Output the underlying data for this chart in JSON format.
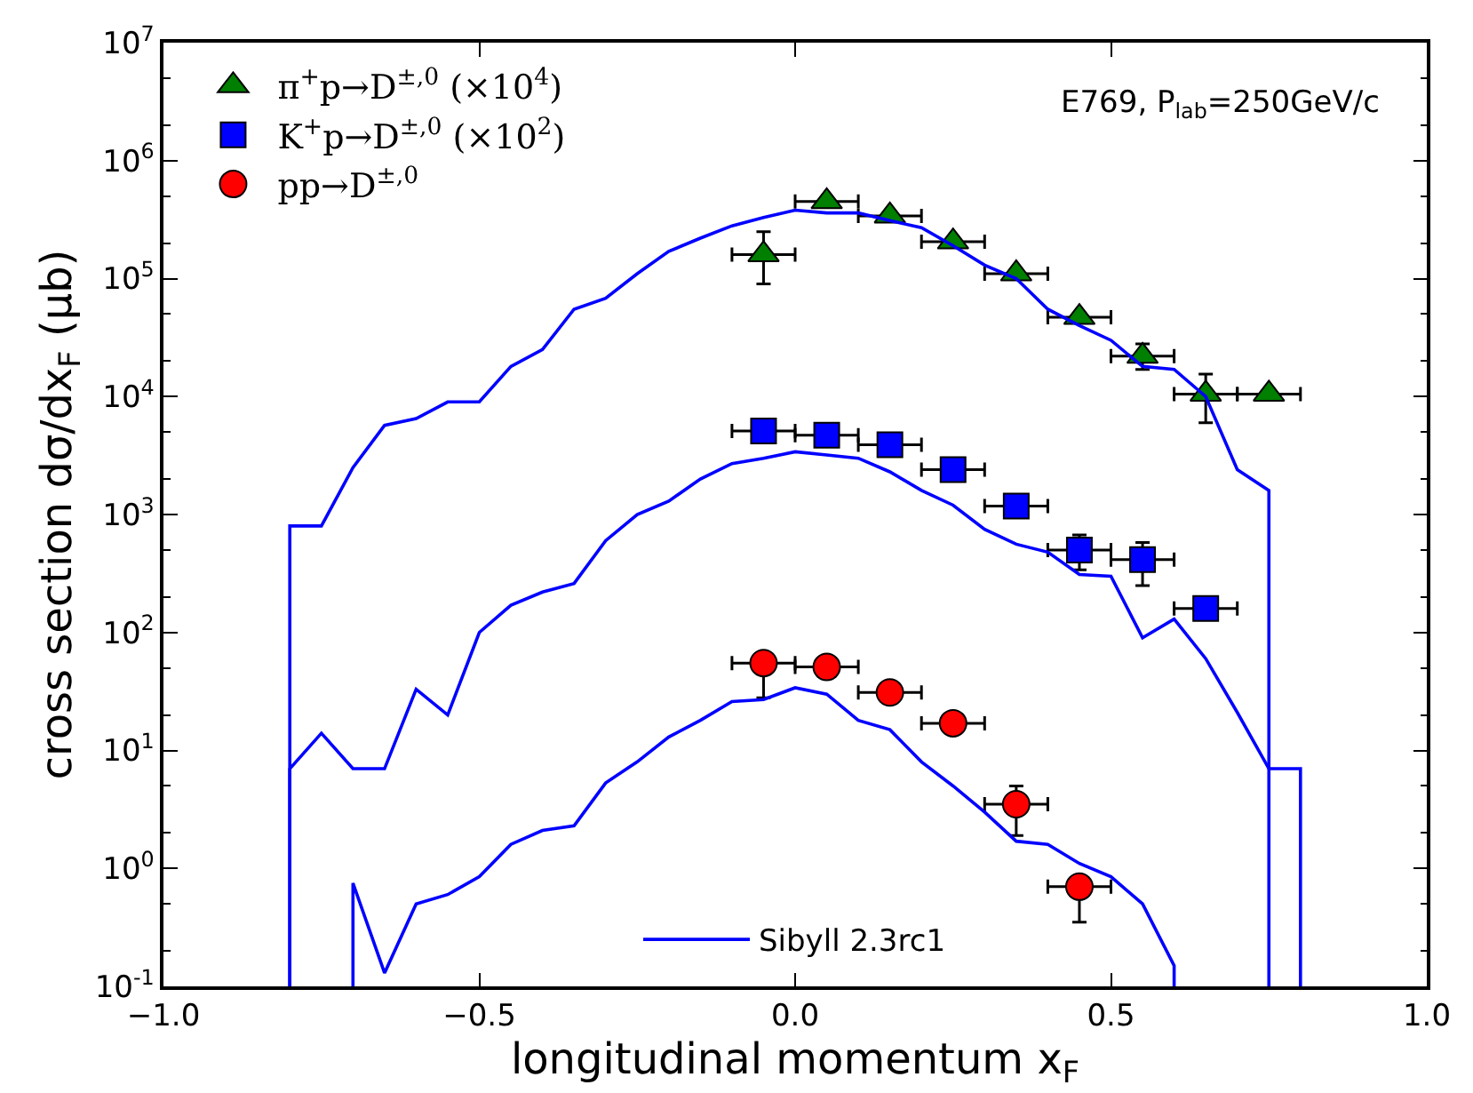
{
  "chart_data": {
    "type": "scatter",
    "xlabel": "longitudinal momentum x$_{F}$",
    "ylabel": "cross section dσ/dx$_{F}$ (μb)",
    "annotations": [
      "E769, P$_{lab}$=250GeV/c"
    ],
    "xlim": [
      -1.0,
      1.0
    ],
    "xticks": [
      {
        "value": -1.0,
        "label": "−1.0"
      },
      {
        "value": -0.5,
        "label": "−0.5"
      },
      {
        "value": 0.0,
        "label": "0.0"
      },
      {
        "value": 0.5,
        "label": "0.5"
      },
      {
        "value": 1.0,
        "label": "1.0"
      }
    ],
    "ylim": [
      0.1,
      10000000
    ],
    "yticks": [
      {
        "value": 0.1,
        "label": "10$^{-1}$"
      },
      {
        "value": 1,
        "label": "10$^{0}$"
      },
      {
        "value": 10,
        "label": "10$^{1}$"
      },
      {
        "value": 100,
        "label": "10$^{2}$"
      },
      {
        "value": 1000,
        "label": "10$^{3}$"
      },
      {
        "value": 10000,
        "label": "10$^{4}$"
      },
      {
        "value": 100000,
        "label": "10$^{5}$"
      },
      {
        "value": 1000000,
        "label": "10$^{6}$"
      },
      {
        "value": 10000000,
        "label": "10$^{7}$"
      }
    ],
    "log": "y",
    "legend": "top left",
    "series": [
      {
        "name": "π$^{+}$p→D$^{±,0}$ (×10$^{4}$)",
        "color": "#007f00",
        "marker": "triangle",
        "x": [
          -0.05,
          0.05,
          0.15,
          0.25,
          0.35,
          0.45,
          0.55,
          0.65,
          0.75
        ],
        "values": [
          160000,
          450000,
          340000,
          205000,
          110000,
          47000,
          22000,
          10500,
          10500
        ],
        "errors": [
          [
            90000,
            250000
          ],
          null,
          null,
          null,
          null,
          null,
          [
            17000,
            28000
          ],
          [
            6000,
            15500
          ],
          null
        ],
        "xerrors": [
          0.05,
          0.05,
          0.05,
          0.05,
          0.05,
          0.05,
          0.05,
          0.05,
          0.05
        ]
      },
      {
        "name": "K$^{+}$p→D$^{±,0}$ (×10$^{2}$)",
        "color": "#0000ff",
        "marker": "square",
        "x": [
          -0.05,
          0.05,
          0.15,
          0.25,
          0.35,
          0.45,
          0.55,
          0.65
        ],
        "values": [
          5100,
          4700,
          3900,
          2400,
          1180,
          500,
          415,
          160
        ],
        "errors": [
          null,
          null,
          null,
          null,
          null,
          [
            340,
            670
          ],
          [
            250,
            580
          ],
          null
        ],
        "xerrors": [
          0.05,
          0.05,
          0.05,
          0.05,
          0.05,
          0.05,
          0.05,
          0.05
        ]
      },
      {
        "name": "pp→D$^{±,0}$",
        "color": "#ff0000",
        "marker": "circle",
        "x": [
          -0.05,
          0.05,
          0.15,
          0.25,
          0.35,
          0.45
        ],
        "values": [
          55,
          51,
          31,
          17,
          3.5,
          0.7
        ],
        "errors": [
          [
            28,
            55
          ],
          null,
          null,
          null,
          [
            1.9,
            5
          ],
          [
            0.35,
            0.7
          ]
        ],
        "xerrors": [
          0.05,
          0.05,
          0.05,
          0.05,
          0.05,
          0.05
        ]
      },
      {
        "name": "Sibyll 2.3rc1",
        "type": "line",
        "color": "#0000ff",
        "marker": "none",
        "x": [
          -0.8,
          -0.8,
          -0.75,
          -0.7,
          -0.65,
          -0.6,
          -0.55,
          -0.5,
          -0.45,
          -0.4,
          -0.35,
          -0.3,
          -0.25,
          -0.2,
          -0.15,
          -0.1,
          -0.05,
          0.0,
          0.05,
          0.1,
          0.15,
          0.2,
          0.25,
          0.3,
          0.35,
          0.4,
          0.45,
          0.5,
          0.55,
          0.6,
          0.65,
          0.7,
          0.75,
          0.75
        ],
        "values": [
          0.1,
          800,
          800,
          2500,
          5700,
          6500,
          9000,
          9000,
          18000,
          25000,
          55000,
          68000,
          110000,
          170000,
          220000,
          280000,
          330000,
          380000,
          360000,
          360000,
          310000,
          270000,
          190000,
          130000,
          100000,
          55000,
          40000,
          30000,
          18000,
          17000,
          10000,
          2400,
          1600,
          0.1
        ]
      },
      {
        "type": "line",
        "color": "#0000ff",
        "marker": "none",
        "x": [
          -0.8,
          -0.8,
          -0.75,
          -0.7,
          -0.65,
          -0.6,
          -0.55,
          -0.5,
          -0.45,
          -0.4,
          -0.35,
          -0.3,
          -0.25,
          -0.2,
          -0.15,
          -0.1,
          -0.05,
          0.0,
          0.05,
          0.1,
          0.15,
          0.2,
          0.25,
          0.3,
          0.35,
          0.4,
          0.45,
          0.5,
          0.55,
          0.6,
          0.65,
          0.7,
          0.75,
          0.8,
          0.8
        ],
        "values": [
          0.1,
          7,
          14,
          7,
          7,
          33,
          20,
          100,
          170,
          220,
          260,
          600,
          1000,
          1300,
          2000,
          2700,
          3000,
          3400,
          3200,
          3000,
          2300,
          1600,
          1200,
          750,
          560,
          480,
          310,
          300,
          90,
          130,
          60,
          21,
          7,
          7,
          0.1
        ]
      },
      {
        "type": "line",
        "color": "#0000ff",
        "marker": "none",
        "x": [
          -0.7,
          -0.7,
          -0.65,
          -0.6,
          -0.55,
          -0.5,
          -0.45,
          -0.4,
          -0.35,
          -0.3,
          -0.25,
          -0.2,
          -0.15,
          -0.1,
          -0.05,
          0.0,
          0.05,
          0.1,
          0.15,
          0.2,
          0.25,
          0.3,
          0.35,
          0.4,
          0.45,
          0.5,
          0.55,
          0.6,
          0.6
        ],
        "values": [
          0.1,
          0.75,
          0.13,
          0.5,
          0.6,
          0.85,
          1.6,
          2.1,
          2.3,
          5.3,
          8,
          13,
          18,
          26,
          27,
          34,
          30,
          18,
          15,
          8,
          5,
          3,
          1.7,
          1.6,
          1.1,
          0.85,
          0.5,
          0.15,
          0.1
        ]
      }
    ]
  }
}
